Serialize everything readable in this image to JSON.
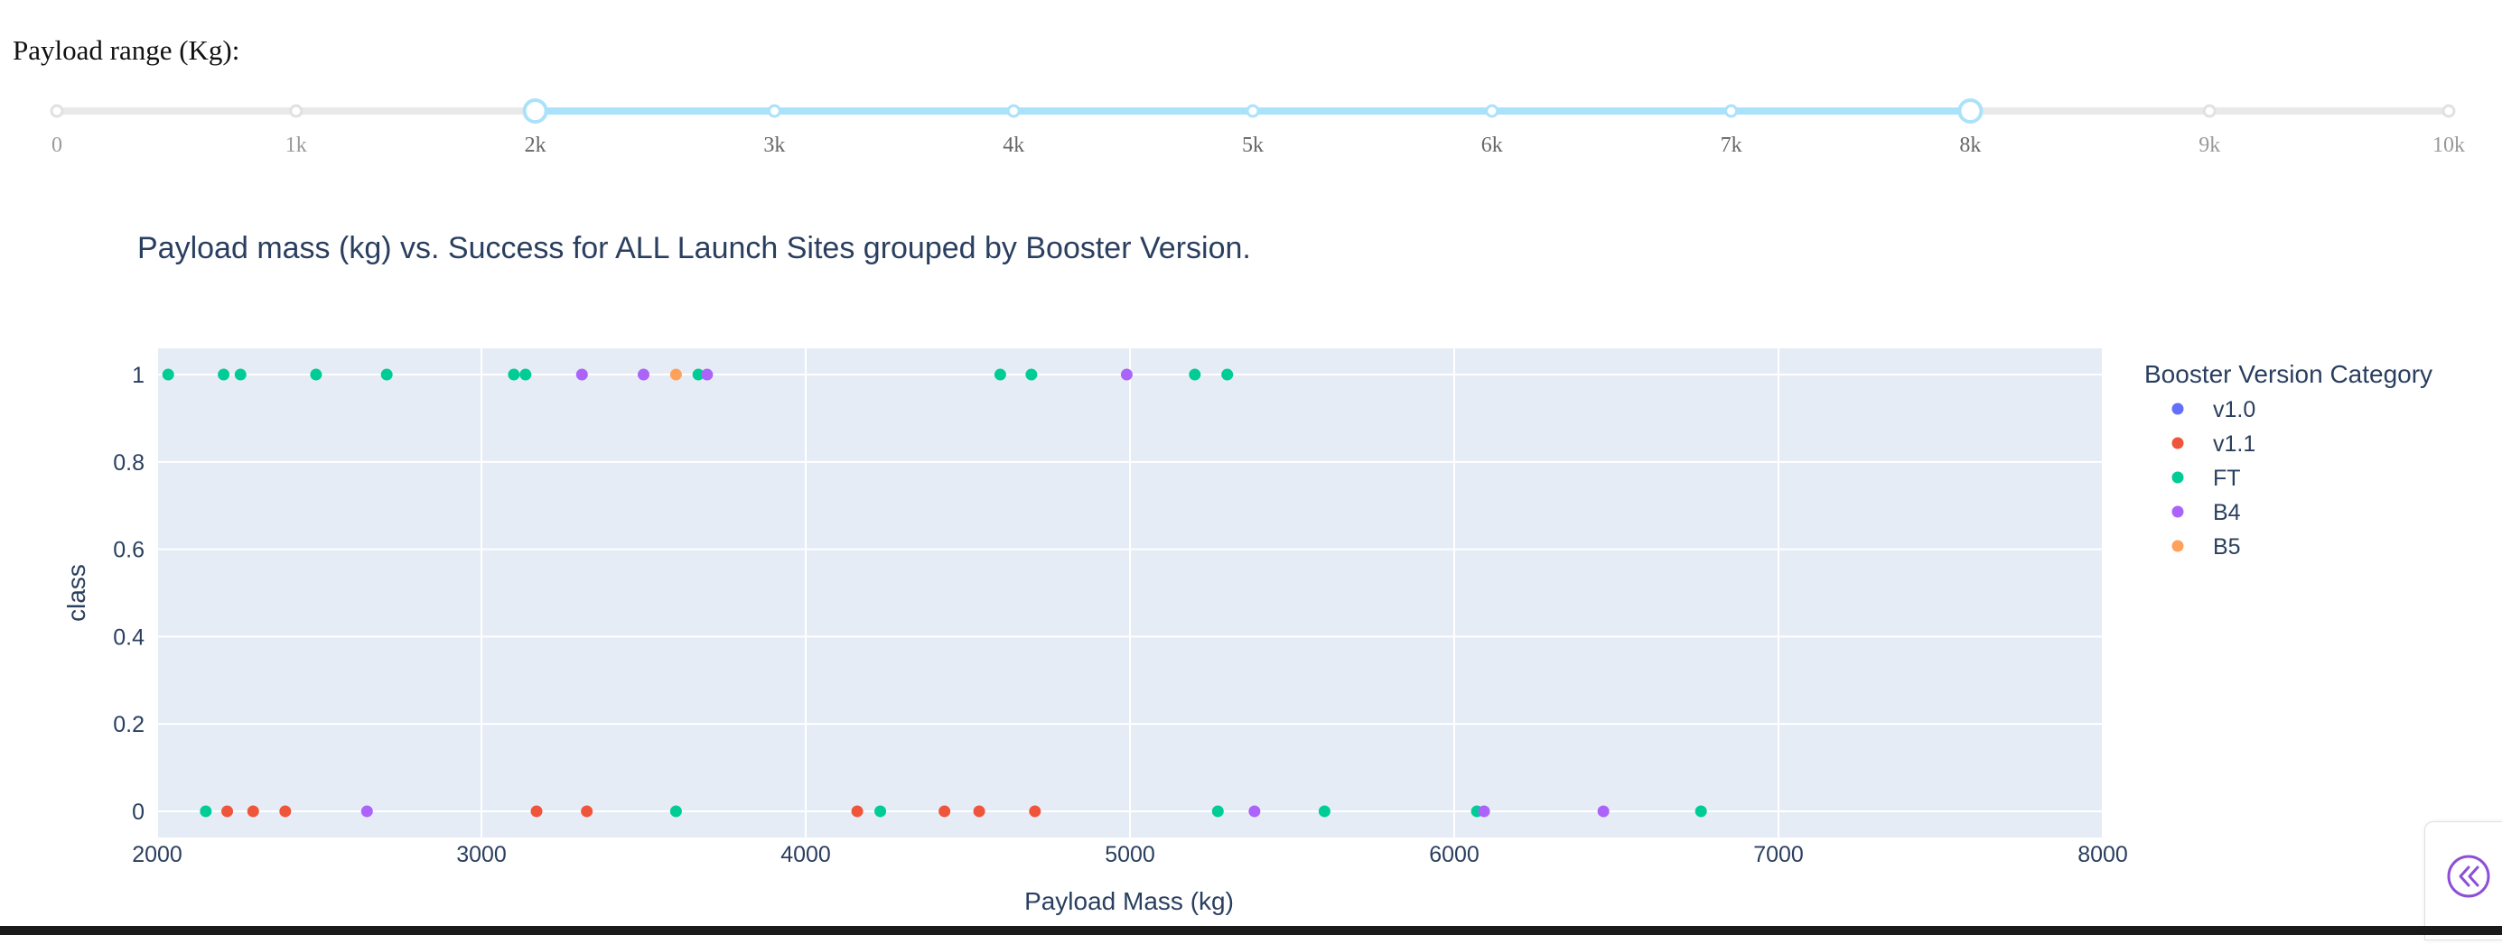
{
  "slider": {
    "label": "Payload range (Kg):",
    "min": 0,
    "max": 10000,
    "step": 1000,
    "selected_low": 2000,
    "selected_high": 8000,
    "marks": [
      "0",
      "1k",
      "2k",
      "3k",
      "4k",
      "5k",
      "6k",
      "7k",
      "8k",
      "9k",
      "10k"
    ],
    "track_color": "#e9e9e9",
    "active_color": "#abe2fb",
    "handle_color": "#abe2fb"
  },
  "controls": {
    "collapse_icon": "double-chevron-left-icon",
    "collapse_color": "#8c4fd6"
  },
  "chart_data": {
    "type": "scatter",
    "title": "Payload mass (kg) vs. Success for ALL Launch Sites grouped by Booster Version.",
    "xlabel": "Payload Mass (kg)",
    "ylabel": "class",
    "xlim": [
      2000,
      8000
    ],
    "ylim": [
      -0.06,
      1.06
    ],
    "xticks": [
      2000,
      3000,
      4000,
      5000,
      6000,
      7000,
      8000
    ],
    "xtick_labels": [
      "2000",
      "3000",
      "4000",
      "5000",
      "6000",
      "7000",
      "8000"
    ],
    "yticks": [
      0,
      0.2,
      0.4,
      0.6,
      0.8,
      1
    ],
    "ytick_labels": [
      "0",
      "0.2",
      "0.4",
      "0.6",
      "0.8",
      "1"
    ],
    "grid": true,
    "plot_bgcolor": "#e5ecf6",
    "legend_title": "Booster Version Category",
    "legend_position": "right",
    "series": [
      {
        "name": "v1.0",
        "color": "#636efa",
        "x": [],
        "y": []
      },
      {
        "name": "v1.1",
        "color": "#ef553b",
        "x": [
          2216,
          2296,
          2395,
          3170,
          3325,
          4159,
          4428,
          4535,
          4707
        ],
        "y": [
          0,
          0,
          0,
          0,
          0,
          0,
          0,
          0,
          0
        ]
      },
      {
        "name": "FT",
        "color": "#00cc96",
        "x": [
          2034,
          2205,
          2257,
          2490,
          2708,
          3100,
          3136,
          3669,
          4600,
          4696,
          5200,
          5300,
          2150,
          3600,
          4230,
          5271,
          5600,
          6070,
          6761
        ],
        "y": [
          1,
          1,
          1,
          1,
          1,
          1,
          1,
          1,
          1,
          1,
          1,
          1,
          0,
          0,
          0,
          0,
          0,
          0,
          0
        ]
      },
      {
        "name": "B4",
        "color": "#ab63fa",
        "x": [
          3310,
          3500,
          3696,
          4990,
          2647,
          5384,
          6092,
          6460
        ],
        "y": [
          1,
          1,
          1,
          1,
          0,
          0,
          0,
          0
        ]
      },
      {
        "name": "B5",
        "color": "#ffa15a",
        "x": [
          3600
        ],
        "y": [
          1
        ]
      }
    ]
  }
}
